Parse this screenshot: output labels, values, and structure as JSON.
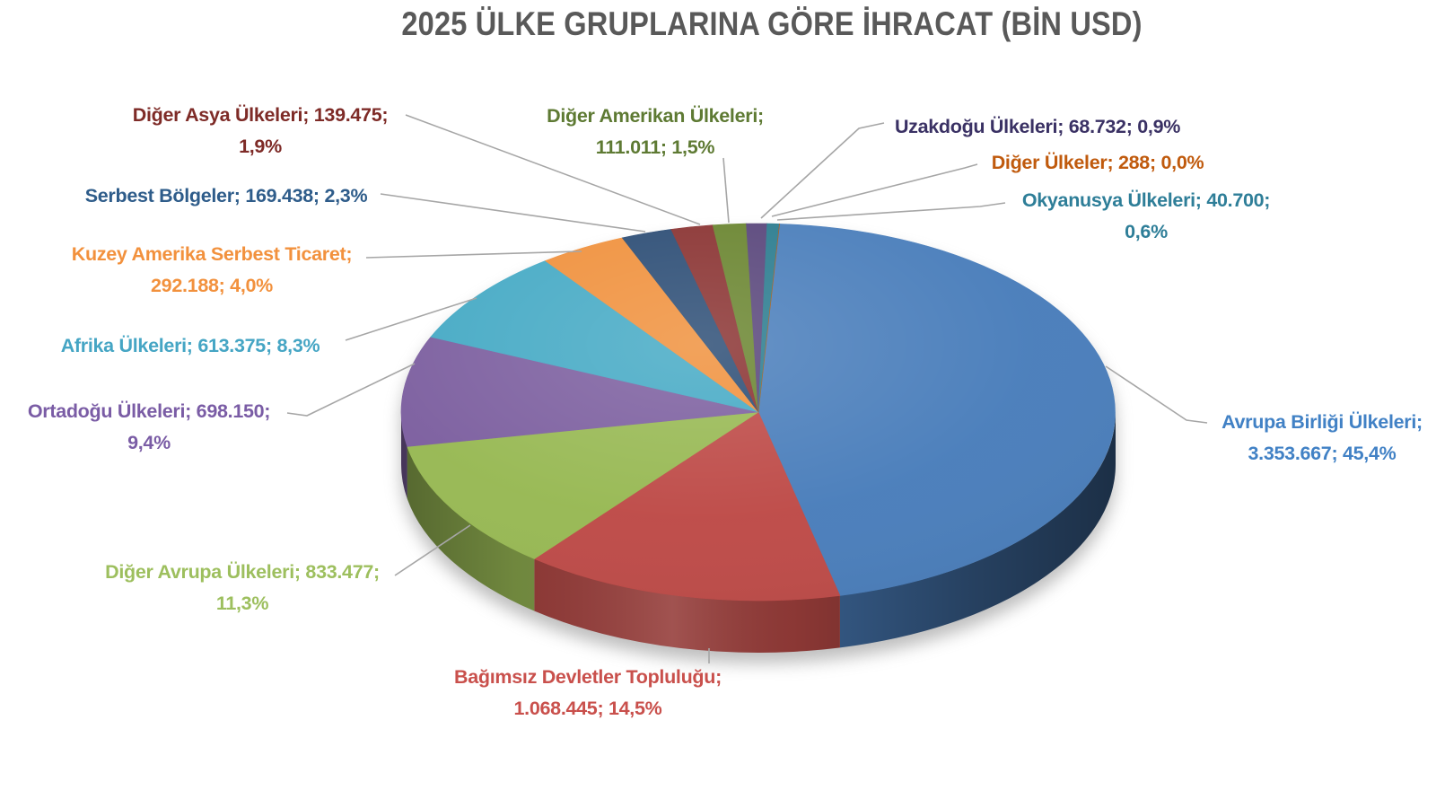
{
  "title_color": "#595959",
  "chart_data": {
    "type": "pie",
    "is_3d": true,
    "title": "2025 ÜLKE GRUPLARINA GÖRE İHRACAT (BİN USD)",
    "unit": "BİN USD",
    "direction": "clockwise",
    "start_angle_deg": 0,
    "legend": "none",
    "background": "#FFFFFF",
    "segments": [
      {
        "id": "avrupa-birligi-ulkeleri",
        "label": "Avrupa Birliği Ülkeleri",
        "value": 3353667,
        "value_display": "3.353.667",
        "percent": 45.4,
        "percent_display": "45,4%",
        "color": "#4A7EBB"
      },
      {
        "id": "bagimsiz-devletler-toplulugu",
        "label": "Bağımsız Devletler Topluluğu",
        "value": 1068445,
        "value_display": "1.068.445",
        "percent": 14.5,
        "percent_display": "14,5%",
        "color": "#BE4B48"
      },
      {
        "id": "diger-avrupa-ulkeleri",
        "label": "Diğer Avrupa Ülkeleri",
        "value": 833477,
        "value_display": "833.477",
        "percent": 11.3,
        "percent_display": "11,3%",
        "color": "#98B954"
      },
      {
        "id": "ortadogu-ulkeleri",
        "label": "Ortadoğu Ülkeleri",
        "value": 698150,
        "value_display": "698.150",
        "percent": 9.4,
        "percent_display": "9,4%",
        "color": "#7D60A0"
      },
      {
        "id": "afrika-ulkeleri",
        "label": "Afrika Ülkeleri",
        "value": 613375,
        "value_display": "613.375",
        "percent": 8.3,
        "percent_display": "8,3%",
        "color": "#46AAC5"
      },
      {
        "id": "kuzey-amerika-serbest-ticaret",
        "label": "Kuzey Amerika Serbest Ticaret",
        "value": 292188,
        "value_display": "292.188",
        "percent": 4.0,
        "percent_display": "4,0%",
        "color": "#F0913D"
      },
      {
        "id": "serbest-bolgeler",
        "label": "Serbest Bölgeler",
        "value": 169438,
        "value_display": "169.438",
        "percent": 2.3,
        "percent_display": "2,3%",
        "color": "#2C4D75"
      },
      {
        "id": "diger-asya-ulkeleri",
        "label": "Diğer Asya Ülkeleri",
        "value": 139475,
        "value_display": "139.475",
        "percent": 1.9,
        "percent_display": "1,9%",
        "color": "#8A3332"
      },
      {
        "id": "diger-amerikan-ulkeleri",
        "label": "Diğer Amerikan Ülkeleri",
        "value": 111011,
        "value_display": "111.011",
        "percent": 1.5,
        "percent_display": "1,5%",
        "color": "#6A8530"
      },
      {
        "id": "uzakdogu-ulkeleri",
        "label": "Uzakdoğu Ülkeleri",
        "value": 68732,
        "value_display": "68.732",
        "percent": 0.9,
        "percent_display": "0,9%",
        "color": "#59467B"
      },
      {
        "id": "okyanusya-ulkeleri",
        "label": "Okyanusya Ülkeleri",
        "value": 40700,
        "value_display": "40.700",
        "percent": 0.6,
        "percent_display": "0,6%",
        "color": "#2B7C8F"
      },
      {
        "id": "diger-ulkeler",
        "label": "Diğer Ülkeler",
        "value": 288,
        "value_display": "288",
        "percent": 0.0,
        "percent_display": "0,0%",
        "color": "#B65708"
      }
    ]
  },
  "labels": {
    "diger_asya": {
      "line1": "Diğer Asya Ülkeleri; 139.475;",
      "line2": "1,9%",
      "color": "#7E2B27"
    },
    "serbest": {
      "line1": "Serbest Bölgeler; 169.438; 2,3%",
      "line2": "",
      "color": "#2E5C8A"
    },
    "kuzey": {
      "line1": "Kuzey Amerika Serbest Ticaret;",
      "line2": "292.188; 4,0%",
      "color": "#F2913D"
    },
    "afrika": {
      "line1": "Afrika Ülkeleri; 613.375; 8,3%",
      "line2": "",
      "color": "#45A5C4"
    },
    "ortadogu": {
      "line1": "Ortadoğu Ülkeleri; 698.150;",
      "line2": "9,4%",
      "color": "#7A5CA5"
    },
    "diger_avrupa": {
      "line1": "Diğer Avrupa Ülkeleri; 833.477;",
      "line2": "11,3%",
      "color": "#9DBF5E"
    },
    "bdt": {
      "line1": "Bağımsız Devletler Topluluğu;",
      "line2": "1.068.445; 14,5%",
      "color": "#C9504C"
    },
    "ab": {
      "line1": "Avrupa Birliği Ülkeleri;",
      "line2": "3.353.667; 45,4%",
      "color": "#4181C5"
    },
    "diger_amerikan": {
      "line1": "Diğer Amerikan Ülkeleri;",
      "line2": "111.011; 1,5%",
      "color": "#5E7A33"
    },
    "uzakdogu": {
      "line1": "Uzakdoğu Ülkeleri; 68.732; 0,9%",
      "line2": "",
      "color": "#3A3164"
    },
    "diger_ulkeler": {
      "line1": "Diğer Ülkeler; 288; 0,0%",
      "line2": "",
      "color": "#C05A0D"
    },
    "okyanusya": {
      "line1": "Okyanusya Ülkeleri; 40.700;",
      "line2": "0,6%",
      "color": "#2E7E98"
    }
  }
}
